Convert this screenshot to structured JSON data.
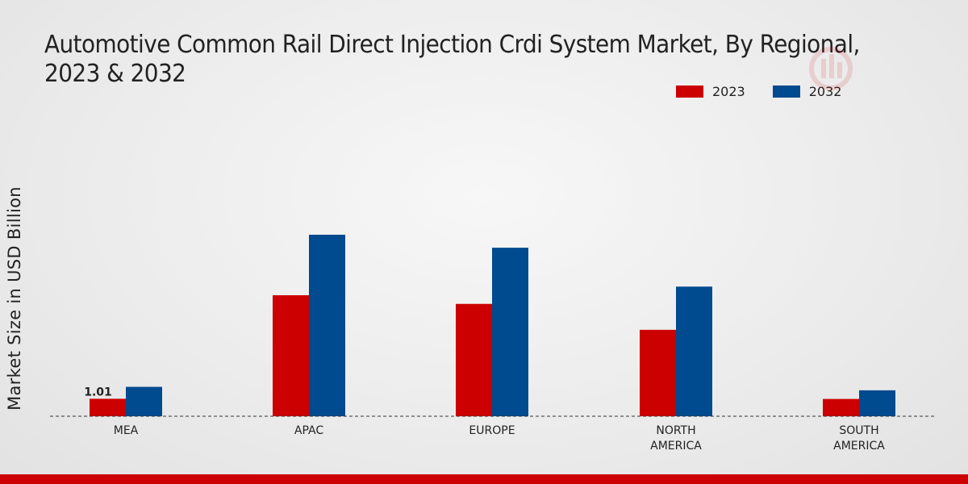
{
  "chart_data": {
    "type": "bar",
    "title": "Automotive Common Rail Direct Injection Crdi System Market, By Regional, 2023 & 2032",
    "xlabel": "",
    "ylabel": "Market Size in USD Billion",
    "categories": [
      "MEA",
      "APAC",
      "EUROPE",
      "NORTH AMERICA",
      "SOUTH AMERICA"
    ],
    "series": [
      {
        "name": "2023",
        "color": "#cc0000",
        "values": [
          1.01,
          7.0,
          6.5,
          5.0,
          1.0
        ]
      },
      {
        "name": "2032",
        "color": "#004a8f",
        "values": [
          1.7,
          10.5,
          9.75,
          7.5,
          1.5
        ]
      }
    ],
    "data_labels": [
      {
        "series": "2023",
        "category": "MEA",
        "text": "1.01"
      }
    ],
    "ylim": [
      0,
      14
    ],
    "grid": false,
    "legend_position": "top-right"
  }
}
